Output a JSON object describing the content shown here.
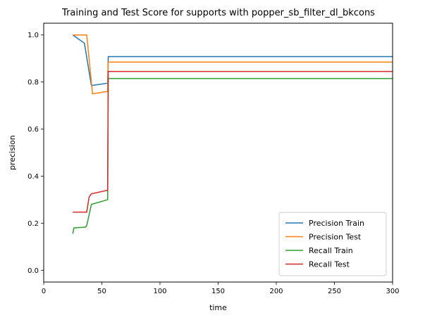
{
  "chart_data": {
    "type": "line",
    "title": "Training and Test Score for supports with popper_sb_filter_dl_bkcons",
    "xlabel": "time",
    "ylabel": "precision",
    "xlim": [
      0,
      300
    ],
    "ylim": [
      -0.05,
      1.05
    ],
    "xticks": [
      0,
      50,
      100,
      150,
      200,
      250,
      300
    ],
    "yticks": [
      0.0,
      0.2,
      0.4,
      0.6,
      0.8,
      1.0
    ],
    "xtick_labels": [
      "0",
      "50",
      "100",
      "150",
      "200",
      "250",
      "300"
    ],
    "ytick_labels": [
      "0.0",
      "0.2",
      "0.4",
      "0.6",
      "0.8",
      "1.0"
    ],
    "grid": false,
    "legend": "lower-right",
    "series": [
      {
        "name": "Precision Train",
        "color": "#1f77b4",
        "points": [
          [
            25,
            1.0
          ],
          [
            35,
            0.965
          ],
          [
            41,
            0.785
          ],
          [
            55,
            0.795
          ],
          [
            55.5,
            0.908
          ],
          [
            300,
            0.908
          ]
        ]
      },
      {
        "name": "Precision Test",
        "color": "#ff7f0e",
        "points": [
          [
            25,
            1.0
          ],
          [
            37,
            1.0
          ],
          [
            42,
            0.75
          ],
          [
            55,
            0.76
          ],
          [
            55.5,
            0.885
          ],
          [
            300,
            0.885
          ]
        ]
      },
      {
        "name": "Recall Train",
        "color": "#2ca02c",
        "points": [
          [
            25,
            0.155
          ],
          [
            26,
            0.18
          ],
          [
            36,
            0.183
          ],
          [
            37,
            0.19
          ],
          [
            41,
            0.28
          ],
          [
            55,
            0.3
          ],
          [
            55.5,
            0.815
          ],
          [
            300,
            0.815
          ]
        ]
      },
      {
        "name": "Recall Test",
        "color": "#d62728",
        "points": [
          [
            25,
            0.247
          ],
          [
            37,
            0.247
          ],
          [
            39,
            0.31
          ],
          [
            41,
            0.325
          ],
          [
            55,
            0.34
          ],
          [
            55.5,
            0.845
          ],
          [
            300,
            0.845
          ]
        ]
      }
    ]
  }
}
